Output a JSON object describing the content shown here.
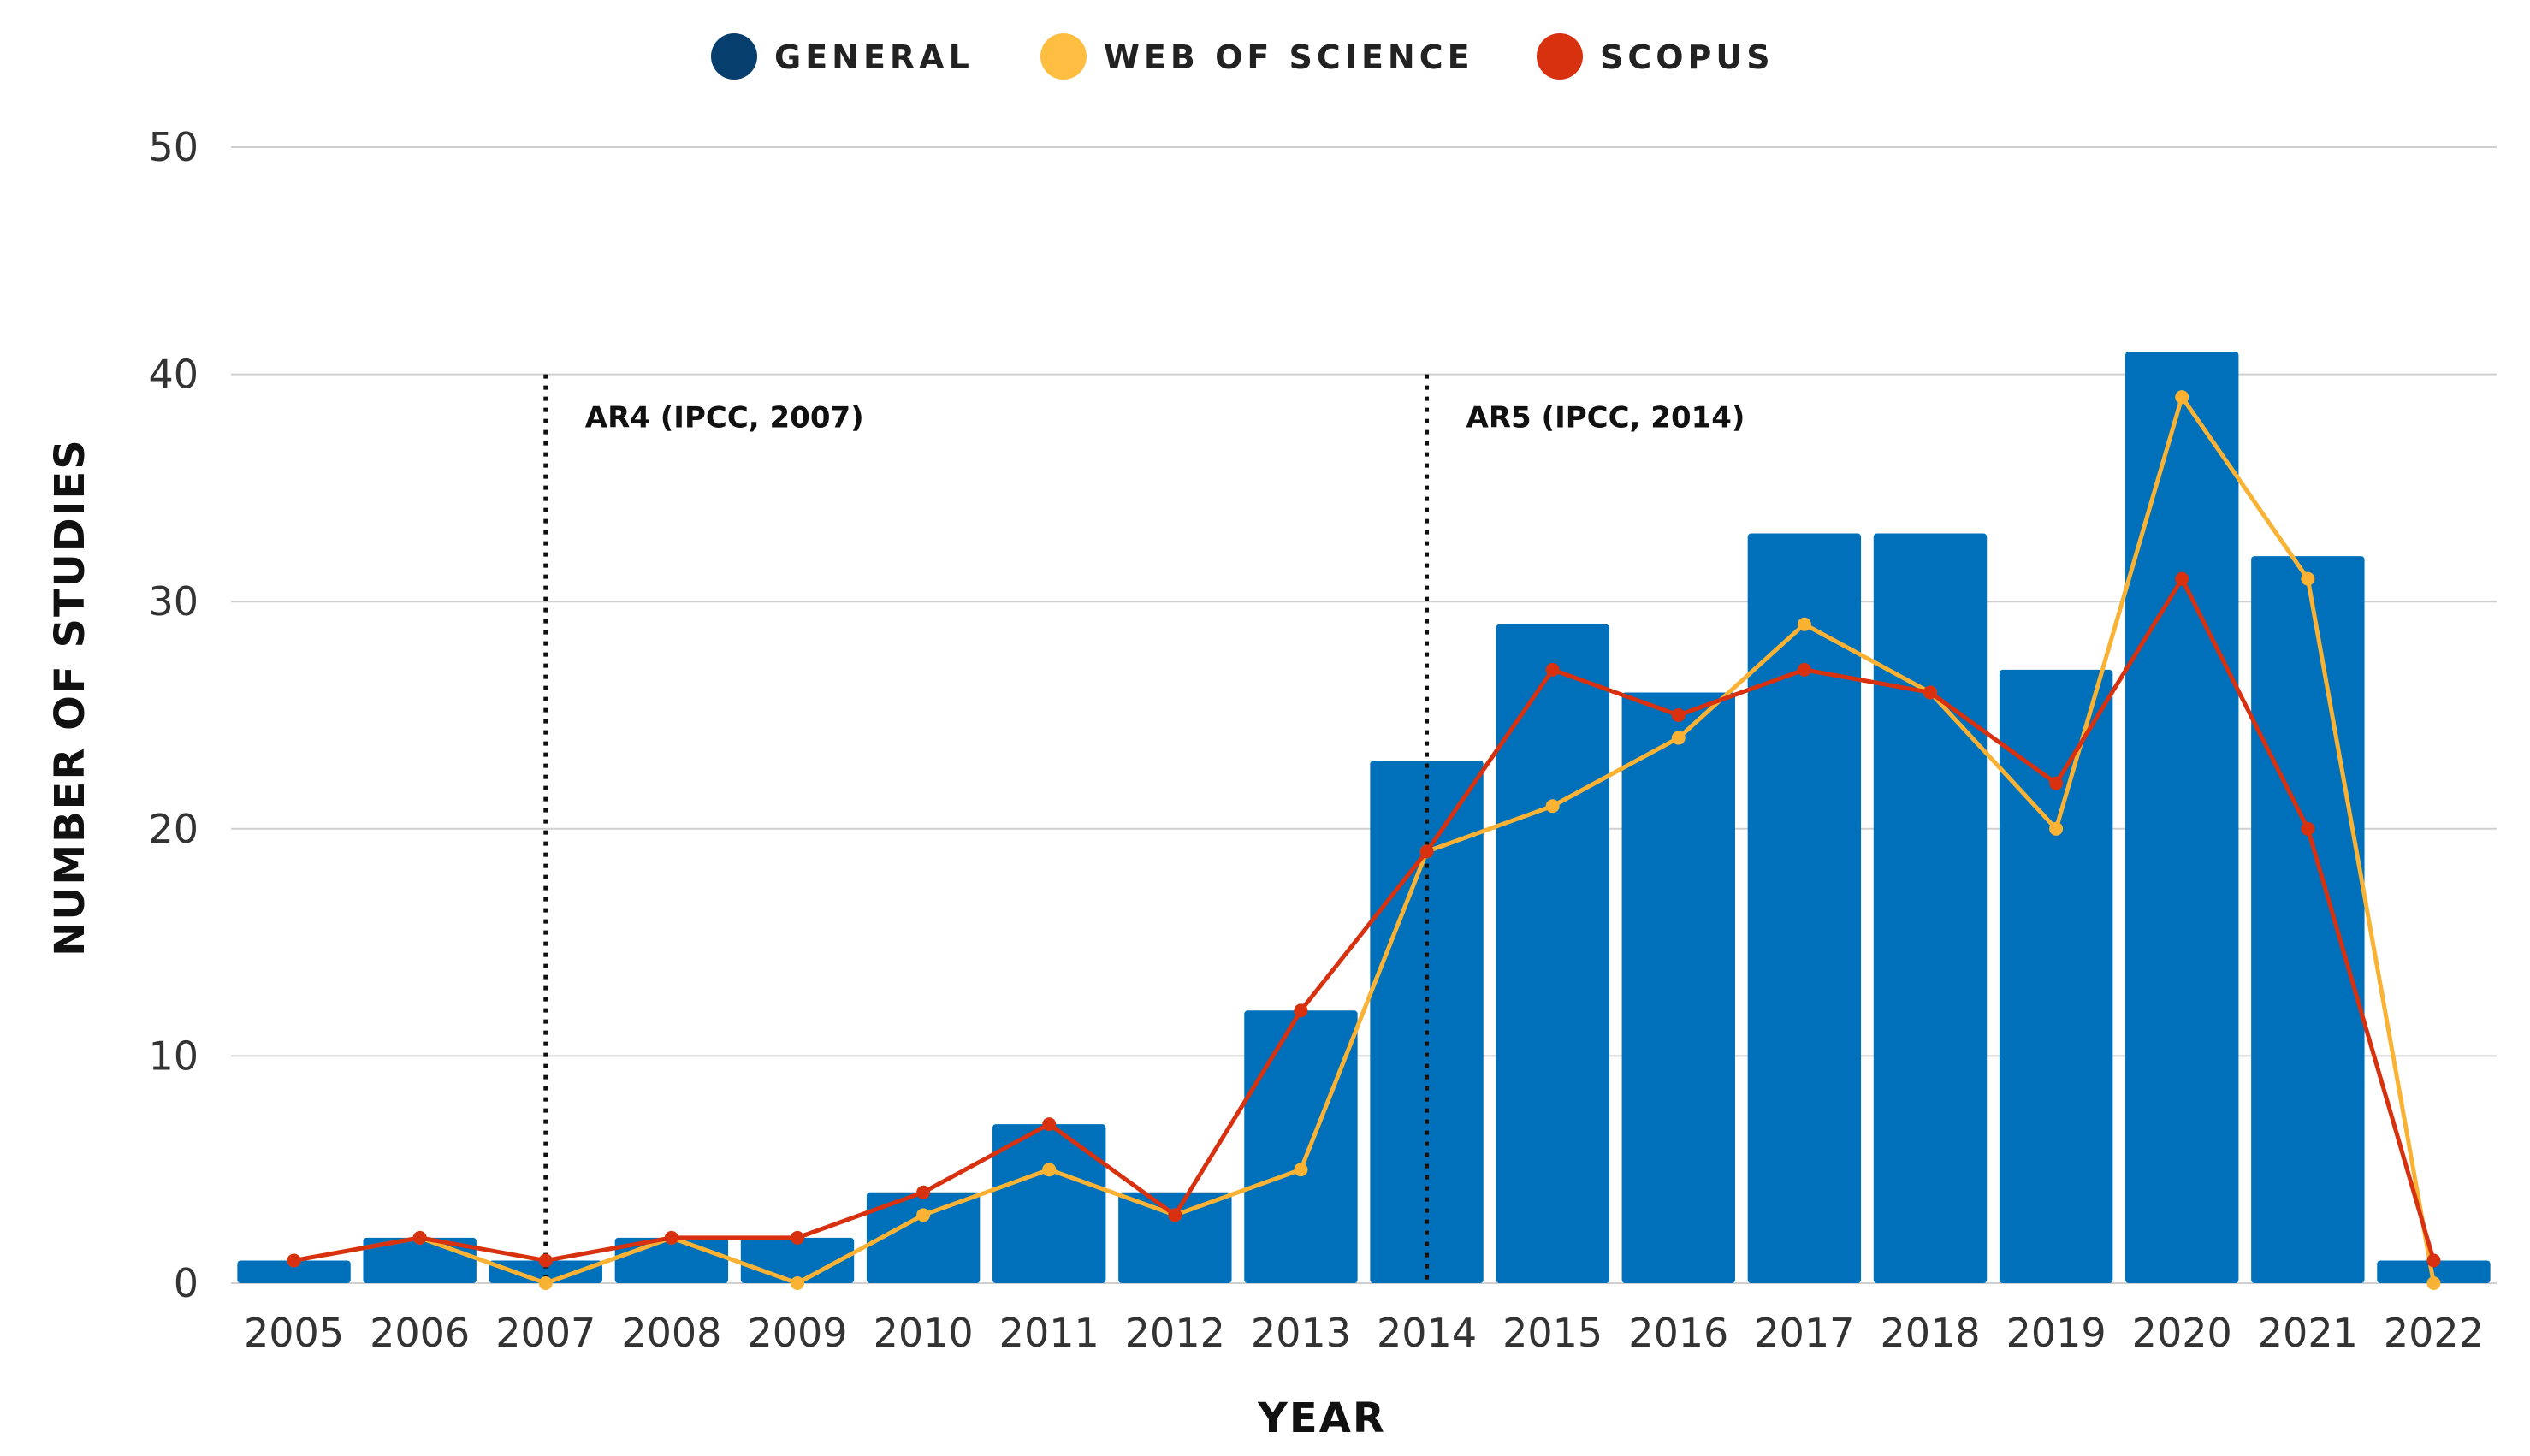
{
  "chart_data": {
    "type": "bar",
    "title": "",
    "xlabel": "YEAR",
    "ylabel": "NUMBER OF STUDIES",
    "ylim": [
      0,
      50
    ],
    "yticks": [
      0,
      10,
      20,
      30,
      40,
      50
    ],
    "grid": true,
    "legend_position": "top-center",
    "categories": [
      "2005",
      "2006",
      "2007",
      "2008",
      "2009",
      "2010",
      "2011",
      "2012",
      "2013",
      "2014",
      "2015",
      "2016",
      "2017",
      "2018",
      "2019",
      "2020",
      "2021",
      "2022"
    ],
    "series": [
      {
        "name": "GENERAL",
        "type": "bar",
        "color": "#0070BA",
        "legend_color": "#063F6E",
        "values": [
          1,
          2,
          1,
          2,
          2,
          4,
          7,
          4,
          12,
          23,
          29,
          26,
          33,
          33,
          27,
          41,
          32,
          1
        ]
      },
      {
        "name": "WEB OF SCIENCE",
        "type": "line",
        "color": "#F9B233",
        "legend_color": "#FDBE41",
        "values": [
          1,
          2,
          0,
          2,
          0,
          3,
          5,
          3,
          5,
          19,
          21,
          24,
          29,
          26,
          20,
          39,
          31,
          0
        ]
      },
      {
        "name": "SCOPUS",
        "type": "line",
        "color": "#D7310F",
        "legend_color": "#D7310F",
        "values": [
          1,
          2,
          1,
          2,
          2,
          4,
          7,
          3,
          12,
          19,
          27,
          25,
          27,
          26,
          22,
          31,
          20,
          1
        ]
      }
    ],
    "annotations": [
      {
        "x": "2007",
        "label": "AR4 (IPCC, 2007)",
        "style": "dotted-vertical-line"
      },
      {
        "x": "2014",
        "label": "AR5 (IPCC, 2014)",
        "style": "dotted-vertical-line"
      }
    ]
  }
}
